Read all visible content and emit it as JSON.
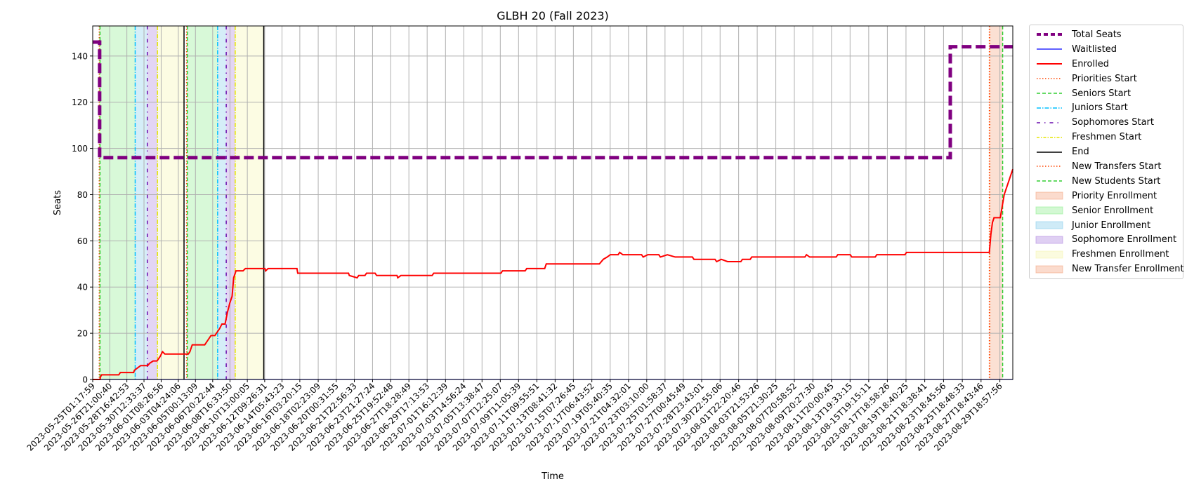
{
  "chart_data": {
    "type": "line",
    "title": "GLBH 20 (Fall 2023)",
    "xlabel": "Time",
    "ylabel": "Seats",
    "ylim": [
      0,
      153
    ],
    "xlim": [
      "2023-05-25T01:17:59",
      "2023-08-31T04:00:00"
    ],
    "yticks": [
      0,
      20,
      40,
      60,
      80,
      100,
      120,
      140
    ],
    "xticks": [
      "2023-05-25T01:17:59",
      "2023-05-26T21:00:40",
      "2023-05-28T16:42:53",
      "2023-05-30T12:33:37",
      "2023-06-01T08:26:56",
      "2023-06-03T04:24:06",
      "2023-06-05T00:13:09",
      "2023-06-06T20:22:44",
      "2023-06-08T16:33:50",
      "2023-06-10T13:00:05",
      "2023-06-12T09:26:31",
      "2023-06-14T05:43:23",
      "2023-06-16T03:20:15",
      "2023-06-18T02:23:09",
      "2023-06-20T00:31:55",
      "2023-06-21T22:56:33",
      "2023-06-23T21:27:24",
      "2023-06-25T19:52:48",
      "2023-06-27T18:28:49",
      "2023-06-29T17:13:53",
      "2023-07-01T16:12:39",
      "2023-07-03T14:56:24",
      "2023-07-05T13:38:47",
      "2023-07-07T12:25:07",
      "2023-07-09T11:05:39",
      "2023-07-11T09:55:51",
      "2023-07-13T08:41:32",
      "2023-07-15T07:26:45",
      "2023-07-17T06:43:52",
      "2023-07-19T05:40:35",
      "2023-07-21T04:32:01",
      "2023-07-23T03:10:00",
      "2023-07-25T01:58:37",
      "2023-07-27T00:45:49",
      "2023-07-28T23:43:01",
      "2023-07-30T22:55:06",
      "2023-08-01T22:20:46",
      "2023-08-03T21:53:26",
      "2023-08-05T21:30:25",
      "2023-08-07T20:58:52",
      "2023-08-09T20:27:30",
      "2023-08-11T20:00:45",
      "2023-08-13T19:33:15",
      "2023-08-15T19:15:11",
      "2023-08-17T18:58:26",
      "2023-08-19T18:40:25",
      "2023-08-21T18:38:41",
      "2023-08-23T18:45:56",
      "2023-08-25T18:48:33",
      "2023-08-27T18:43:46",
      "2023-08-29T18:57:56"
    ],
    "grid": true,
    "legend_position": "outside-right",
    "series": [
      {
        "name": "Total Seats",
        "color": "#800080",
        "style": "dashed-thick",
        "points": [
          [
            "2023-05-25T01:17:59",
            146
          ],
          [
            "2023-05-25T19:00:00",
            146
          ],
          [
            "2023-05-25T19:00:00",
            96
          ],
          [
            "2023-08-24T12:00:00",
            96
          ],
          [
            "2023-08-24T12:00:00",
            144
          ],
          [
            "2023-08-31T04:00:00",
            144
          ]
        ]
      },
      {
        "name": "Waitlisted",
        "color": "#0000ff",
        "style": "solid-thin",
        "points": [
          [
            "2023-05-25T01:17:59",
            0
          ],
          [
            "2023-08-31T04:00:00",
            0
          ]
        ]
      },
      {
        "name": "Enrolled",
        "color": "#ff0000",
        "style": "solid",
        "points": [
          [
            "2023-05-25T01:17:59",
            0
          ],
          [
            "2023-05-25T20:00:00",
            0
          ],
          [
            "2023-05-25T21:00:00",
            1
          ],
          [
            "2023-05-26T00:00:00",
            2
          ],
          [
            "2023-05-27T20:00:00",
            2
          ],
          [
            "2023-05-28T00:00:00",
            3
          ],
          [
            "2023-05-29T10:00:00",
            3
          ],
          [
            "2023-05-29T12:00:00",
            4
          ],
          [
            "2023-05-29T20:00:00",
            5
          ],
          [
            "2023-05-30T04:00:00",
            6
          ],
          [
            "2023-05-30T22:00:00",
            6
          ],
          [
            "2023-05-31T03:00:00",
            7
          ],
          [
            "2023-05-31T12:00:00",
            8
          ],
          [
            "2023-05-31T22:00:00",
            8
          ],
          [
            "2023-06-01T06:00:00",
            10
          ],
          [
            "2023-06-01T12:00:00",
            12
          ],
          [
            "2023-06-01T18:00:00",
            11
          ],
          [
            "2023-06-04T06:00:00",
            11
          ],
          [
            "2023-06-04T10:00:00",
            12
          ],
          [
            "2023-06-04T16:00:00",
            15
          ],
          [
            "2023-06-06T00:00:00",
            15
          ],
          [
            "2023-06-06T08:00:00",
            17
          ],
          [
            "2023-06-06T16:00:00",
            19
          ],
          [
            "2023-06-07T02:00:00",
            19
          ],
          [
            "2023-06-07T06:00:00",
            20
          ],
          [
            "2023-06-07T14:00:00",
            22
          ],
          [
            "2023-06-07T20:00:00",
            24
          ],
          [
            "2023-06-08T04:00:00",
            24
          ],
          [
            "2023-06-08T10:00:00",
            29
          ],
          [
            "2023-06-08T16:00:00",
            33
          ],
          [
            "2023-06-08T22:00:00",
            36
          ],
          [
            "2023-06-09T02:00:00",
            44
          ],
          [
            "2023-06-09T08:00:00",
            47
          ],
          [
            "2023-06-10T02:00:00",
            47
          ],
          [
            "2023-06-10T08:00:00",
            48
          ],
          [
            "2023-06-12T10:00:00",
            48
          ],
          [
            "2023-06-12T12:00:00",
            47
          ],
          [
            "2023-06-12T18:00:00",
            48
          ],
          [
            "2023-06-15T20:00:00",
            48
          ],
          [
            "2023-06-15T22:00:00",
            46
          ],
          [
            "2023-06-21T08:00:00",
            46
          ],
          [
            "2023-06-21T10:00:00",
            45
          ],
          [
            "2023-06-22T06:00:00",
            44
          ],
          [
            "2023-06-22T10:00:00",
            45
          ],
          [
            "2023-06-23T02:00:00",
            45
          ],
          [
            "2023-06-23T06:00:00",
            46
          ],
          [
            "2023-06-24T04:00:00",
            46
          ],
          [
            "2023-06-24T08:00:00",
            45
          ],
          [
            "2023-06-26T12:00:00",
            45
          ],
          [
            "2023-06-26T14:00:00",
            44
          ],
          [
            "2023-06-26T22:00:00",
            45
          ],
          [
            "2023-06-30T06:00:00",
            45
          ],
          [
            "2023-06-30T10:00:00",
            46
          ],
          [
            "2023-07-07T14:00:00",
            46
          ],
          [
            "2023-07-07T18:00:00",
            47
          ],
          [
            "2023-07-10T04:00:00",
            47
          ],
          [
            "2023-07-10T08:00:00",
            48
          ],
          [
            "2023-07-12T06:00:00",
            48
          ],
          [
            "2023-07-12T10:00:00",
            50
          ],
          [
            "2023-07-18T02:00:00",
            50
          ],
          [
            "2023-07-18T12:00:00",
            52
          ],
          [
            "2023-07-18T22:00:00",
            53
          ],
          [
            "2023-07-19T06:00:00",
            54
          ],
          [
            "2023-07-20T02:00:00",
            54
          ],
          [
            "2023-07-20T06:00:00",
            55
          ],
          [
            "2023-07-20T14:00:00",
            54
          ],
          [
            "2023-07-22T14:00:00",
            54
          ],
          [
            "2023-07-22T18:00:00",
            53
          ],
          [
            "2023-07-23T06:00:00",
            54
          ],
          [
            "2023-07-24T10:00:00",
            54
          ],
          [
            "2023-07-24T14:00:00",
            53
          ],
          [
            "2023-07-25T08:00:00",
            54
          ],
          [
            "2023-07-26T04:00:00",
            53
          ],
          [
            "2023-07-28T00:00:00",
            53
          ],
          [
            "2023-07-28T04:00:00",
            52
          ],
          [
            "2023-07-30T10:00:00",
            52
          ],
          [
            "2023-07-30T14:00:00",
            51
          ],
          [
            "2023-07-31T02:00:00",
            52
          ],
          [
            "2023-07-31T18:00:00",
            51
          ],
          [
            "2023-08-02T04:00:00",
            51
          ],
          [
            "2023-08-02T08:00:00",
            52
          ],
          [
            "2023-08-03T04:00:00",
            52
          ],
          [
            "2023-08-03T08:00:00",
            53
          ],
          [
            "2023-08-09T00:00:00",
            53
          ],
          [
            "2023-08-09T04:00:00",
            54
          ],
          [
            "2023-08-09T12:00:00",
            53
          ],
          [
            "2023-08-12T08:00:00",
            53
          ],
          [
            "2023-08-12T12:00:00",
            54
          ],
          [
            "2023-08-13T20:00:00",
            54
          ],
          [
            "2023-08-14T00:00:00",
            53
          ],
          [
            "2023-08-16T12:00:00",
            53
          ],
          [
            "2023-08-16T16:00:00",
            54
          ],
          [
            "2023-08-19T16:00:00",
            54
          ],
          [
            "2023-08-19T20:00:00",
            55
          ],
          [
            "2023-08-28T16:00:00",
            55
          ],
          [
            "2023-08-28T20:00:00",
            63
          ],
          [
            "2023-08-29T00:00:00",
            68
          ],
          [
            "2023-08-29T04:00:00",
            70
          ],
          [
            "2023-08-29T20:00:00",
            70
          ],
          [
            "2023-08-30T06:00:00",
            80
          ],
          [
            "2023-08-31T04:00:00",
            91
          ]
        ]
      }
    ],
    "vlines": [
      {
        "name": "Priorities Start",
        "color": "#ff4500",
        "style": "dotted",
        "x": [
          "2023-05-25T18:00:00",
          "2023-06-04T01:30:00",
          "2023-08-28T17:00:00"
        ]
      },
      {
        "name": "Seniors Start",
        "color": "#32cd32",
        "style": "dashed",
        "x": [
          "2023-05-25T20:00:00",
          "2023-06-04T03:30:00"
        ]
      },
      {
        "name": "Juniors Start",
        "color": "#00bfff",
        "style": "dashdot",
        "x": [
          "2023-05-29T14:00:00",
          "2023-06-07T09:00:00"
        ]
      },
      {
        "name": "Sophomores Start",
        "color": "#6a0dad",
        "style": "dashdot-sparse",
        "x": [
          "2023-05-30T21:00:00",
          "2023-06-08T07:00:00"
        ]
      },
      {
        "name": "Freshmen Start",
        "color": "#e5e500",
        "style": "dashdot",
        "x": [
          "2023-05-31T23:00:00",
          "2023-06-09T06:00:00"
        ]
      },
      {
        "name": "End",
        "color": "#000000",
        "style": "solid",
        "x": [
          "2023-06-03T19:00:00",
          "2023-06-12T07:00:00"
        ]
      },
      {
        "name": "New Transfers Start",
        "color": "#ff4500",
        "style": "dotted",
        "x": [
          "2023-08-28T16:00:00"
        ]
      },
      {
        "name": "New Students Start",
        "color": "#32cd32",
        "style": "dashed",
        "x": [
          "2023-08-30T02:00:00"
        ]
      }
    ],
    "spans": [
      {
        "name": "Priority Enrollment",
        "color": "#f4a582",
        "ranges": [
          [
            "2023-05-25T18:00:00",
            "2023-05-25T20:00:00"
          ],
          [
            "2023-06-04T01:30:00",
            "2023-06-04T03:30:00"
          ]
        ]
      },
      {
        "name": "Senior Enrollment",
        "color": "#90ee90",
        "ranges": [
          [
            "2023-05-25T20:00:00",
            "2023-05-29T14:00:00"
          ],
          [
            "2023-06-04T03:30:00",
            "2023-06-07T09:00:00"
          ]
        ]
      },
      {
        "name": "Junior Enrollment",
        "color": "#87ceeb",
        "ranges": [
          [
            "2023-05-29T14:00:00",
            "2023-05-30T21:00:00"
          ],
          [
            "2023-06-07T09:00:00",
            "2023-06-08T07:00:00"
          ]
        ]
      },
      {
        "name": "Sophomore Enrollment",
        "color": "#b088e0",
        "ranges": [
          [
            "2023-05-30T21:00:00",
            "2023-05-31T23:00:00"
          ],
          [
            "2023-06-08T07:00:00",
            "2023-06-09T06:00:00"
          ]
        ]
      },
      {
        "name": "Freshmen Enrollment",
        "color": "#f5f5b0",
        "ranges": [
          [
            "2023-05-31T23:00:00",
            "2023-06-03T19:00:00"
          ],
          [
            "2023-06-09T06:00:00",
            "2023-06-12T07:00:00"
          ]
        ]
      },
      {
        "name": "New Transfer Enrollment",
        "color": "#f4a582",
        "ranges": [
          [
            "2023-08-28T16:00:00",
            "2023-08-30T02:00:00"
          ]
        ]
      }
    ]
  },
  "legend": {
    "items": [
      {
        "label": "Total Seats",
        "kind": "line",
        "color": "#800080",
        "dash": "6,4",
        "width": 4
      },
      {
        "label": "Waitlisted",
        "kind": "line",
        "color": "#0000ff",
        "dash": "",
        "width": 1.2
      },
      {
        "label": "Enrolled",
        "kind": "line",
        "color": "#ff0000",
        "dash": "",
        "width": 2
      },
      {
        "label": "Priorities Start",
        "kind": "line",
        "color": "#ff4500",
        "dash": "1.5,2.5",
        "width": 1.5
      },
      {
        "label": "Seniors Start",
        "kind": "line",
        "color": "#32cd32",
        "dash": "5,3",
        "width": 1.5
      },
      {
        "label": "Juniors Start",
        "kind": "line",
        "color": "#00bfff",
        "dash": "6,2,1.5,2",
        "width": 1.5
      },
      {
        "label": "Sophomores Start",
        "kind": "line",
        "color": "#6a0dad",
        "dash": "5,6,1.5,6",
        "width": 1.5
      },
      {
        "label": "Freshmen Start",
        "kind": "line",
        "color": "#e5e500",
        "dash": "4,2,1.5,2",
        "width": 1.5
      },
      {
        "label": "End",
        "kind": "line",
        "color": "#000000",
        "dash": "",
        "width": 1.5
      },
      {
        "label": "New Transfers Start",
        "kind": "line",
        "color": "#ff4500",
        "dash": "1.5,2.5",
        "width": 1.5
      },
      {
        "label": "New Students Start",
        "kind": "line",
        "color": "#32cd32",
        "dash": "5,3",
        "width": 1.5
      },
      {
        "label": "Priority Enrollment",
        "kind": "patch",
        "color": "#f4a582"
      },
      {
        "label": "Senior Enrollment",
        "kind": "patch",
        "color": "#90ee90"
      },
      {
        "label": "Junior Enrollment",
        "kind": "patch",
        "color": "#87ceeb"
      },
      {
        "label": "Sophomore Enrollment",
        "kind": "patch",
        "color": "#b088e0"
      },
      {
        "label": "Freshmen Enrollment",
        "kind": "patch",
        "color": "#f5f5b0"
      },
      {
        "label": "New Transfer Enrollment",
        "kind": "patch",
        "color": "#f4a582"
      }
    ]
  }
}
